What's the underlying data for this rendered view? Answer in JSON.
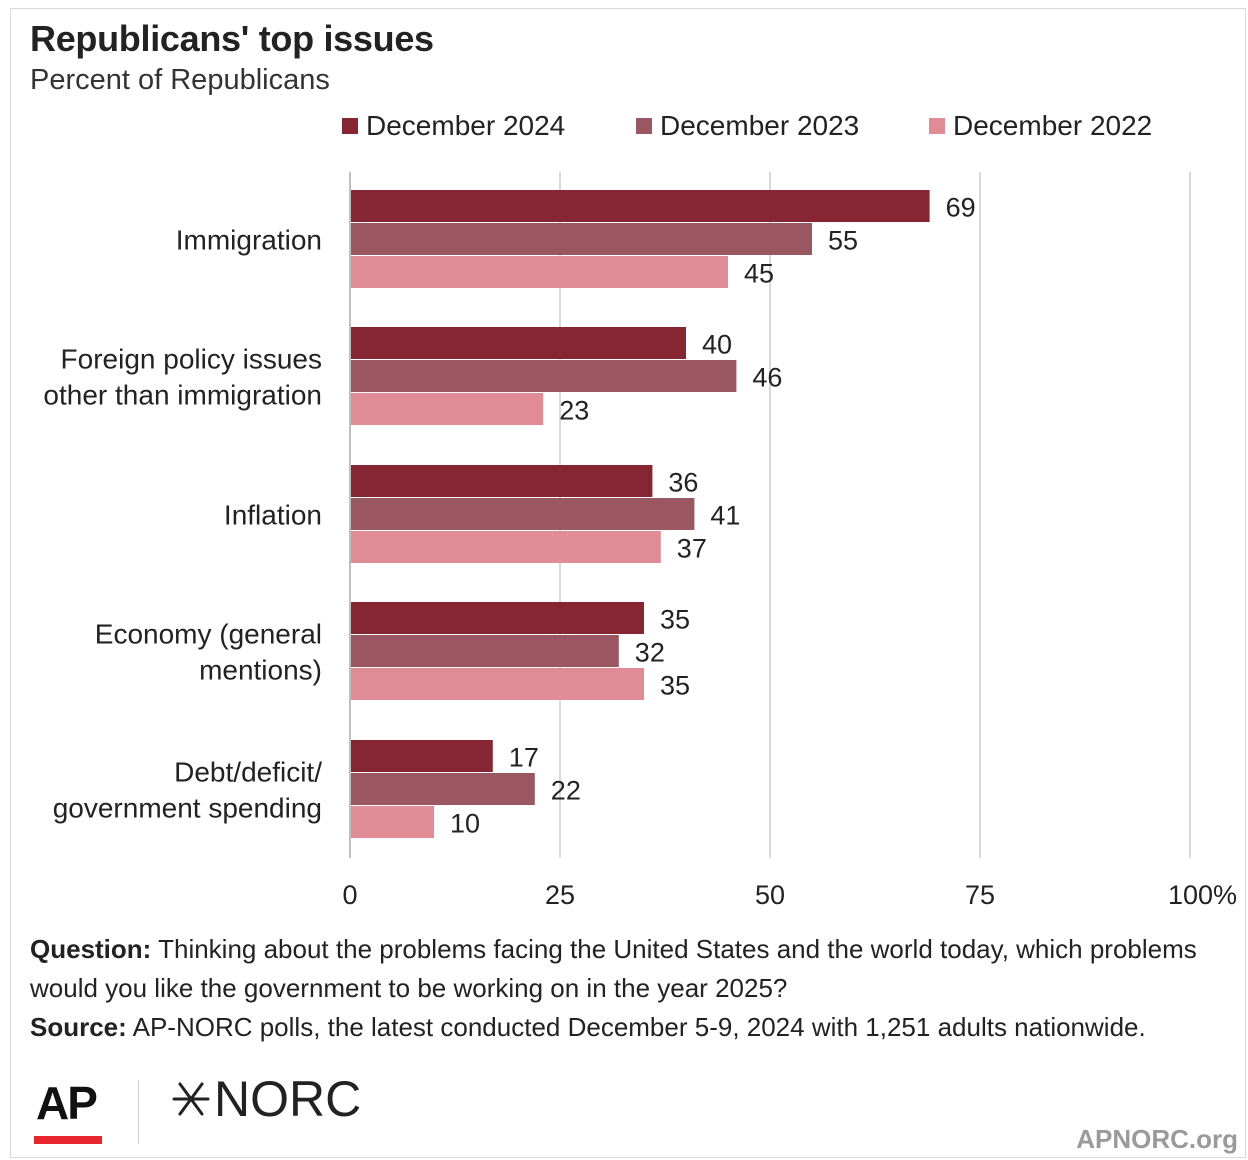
{
  "header": {
    "title": "Republicans' top issues",
    "subtitle": "Percent of Republicans"
  },
  "colors": {
    "series_2024": "#862633",
    "series_2023": "#9b5761",
    "series_2022": "#e08b96",
    "grid": "#d9d9d9",
    "axis": "#bfbfbf"
  },
  "chart_data": {
    "type": "bar",
    "orientation": "horizontal",
    "categories": [
      [
        "Immigration"
      ],
      [
        "Foreign policy issues",
        "other than immigration"
      ],
      [
        "Inflation"
      ],
      [
        "Economy (general",
        "mentions)"
      ],
      [
        "Debt/deficit/",
        "government spending"
      ]
    ],
    "series": [
      {
        "name": "December 2024",
        "values": [
          69,
          40,
          36,
          35,
          17
        ]
      },
      {
        "name": "December 2023",
        "values": [
          55,
          46,
          41,
          32,
          22
        ]
      },
      {
        "name": "December 2022",
        "values": [
          45,
          23,
          37,
          35,
          10
        ]
      }
    ],
    "x_ticks": [
      "0",
      "25",
      "50",
      "75",
      "100%"
    ],
    "x_tick_values": [
      0,
      25,
      50,
      75,
      100
    ],
    "xlim": [
      0,
      100
    ],
    "grid": true,
    "legend_position": "top"
  },
  "footnote": {
    "question_label": "Question:",
    "question_text": " Thinking about the problems facing the United States and the world today, which problems would you like the government to be working on in the year 2025?",
    "source_label": "Source:",
    "source_text": " AP-NORC polls, the latest conducted December 5-9, 2024 with 1,251 adults nationwide."
  },
  "footer": {
    "logo_ap": "AP",
    "logo_norc": "NORC",
    "site": "APNORC.org"
  }
}
